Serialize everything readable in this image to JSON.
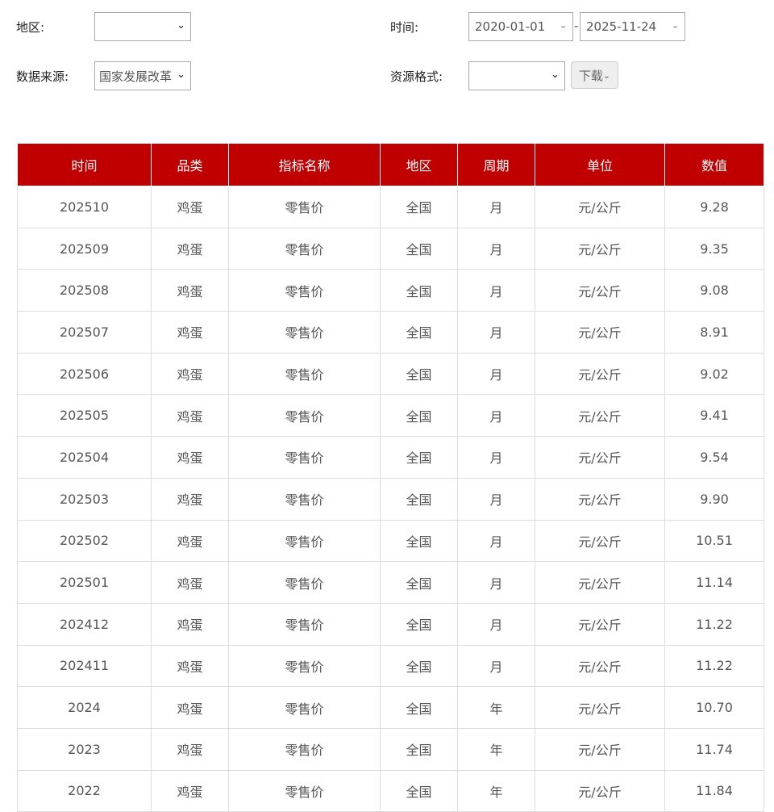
{
  "filters": {
    "region_label": "地区:",
    "region_value": "",
    "time_label": "时间:",
    "time_start": "2020-01-01",
    "time_sep": "-",
    "time_end": "2025-11-24",
    "source_label": "数据来源:",
    "source_value": "国家发展改革",
    "format_label": "资源格式:",
    "format_value": "",
    "download_label": "下载"
  },
  "colors": {
    "header": "#c00000"
  },
  "table": {
    "headers": [
      "时间",
      "品类",
      "指标名称",
      "地区",
      "周期",
      "单位",
      "数值"
    ],
    "rows": [
      [
        "202510",
        "鸡蛋",
        "零售价",
        "全国",
        "月",
        "元/公斤",
        "9.28"
      ],
      [
        "202509",
        "鸡蛋",
        "零售价",
        "全国",
        "月",
        "元/公斤",
        "9.35"
      ],
      [
        "202508",
        "鸡蛋",
        "零售价",
        "全国",
        "月",
        "元/公斤",
        "9.08"
      ],
      [
        "202507",
        "鸡蛋",
        "零售价",
        "全国",
        "月",
        "元/公斤",
        "8.91"
      ],
      [
        "202506",
        "鸡蛋",
        "零售价",
        "全国",
        "月",
        "元/公斤",
        "9.02"
      ],
      [
        "202505",
        "鸡蛋",
        "零售价",
        "全国",
        "月",
        "元/公斤",
        "9.41"
      ],
      [
        "202504",
        "鸡蛋",
        "零售价",
        "全国",
        "月",
        "元/公斤",
        "9.54"
      ],
      [
        "202503",
        "鸡蛋",
        "零售价",
        "全国",
        "月",
        "元/公斤",
        "9.90"
      ],
      [
        "202502",
        "鸡蛋",
        "零售价",
        "全国",
        "月",
        "元/公斤",
        "10.51"
      ],
      [
        "202501",
        "鸡蛋",
        "零售价",
        "全国",
        "月",
        "元/公斤",
        "11.14"
      ],
      [
        "202412",
        "鸡蛋",
        "零售价",
        "全国",
        "月",
        "元/公斤",
        "11.22"
      ],
      [
        "202411",
        "鸡蛋",
        "零售价",
        "全国",
        "月",
        "元/公斤",
        "11.22"
      ],
      [
        "2024",
        "鸡蛋",
        "零售价",
        "全国",
        "年",
        "元/公斤",
        "10.70"
      ],
      [
        "2023",
        "鸡蛋",
        "零售价",
        "全国",
        "年",
        "元/公斤",
        "11.74"
      ],
      [
        "2022",
        "鸡蛋",
        "零售价",
        "全国",
        "年",
        "元/公斤",
        "11.84"
      ]
    ]
  }
}
